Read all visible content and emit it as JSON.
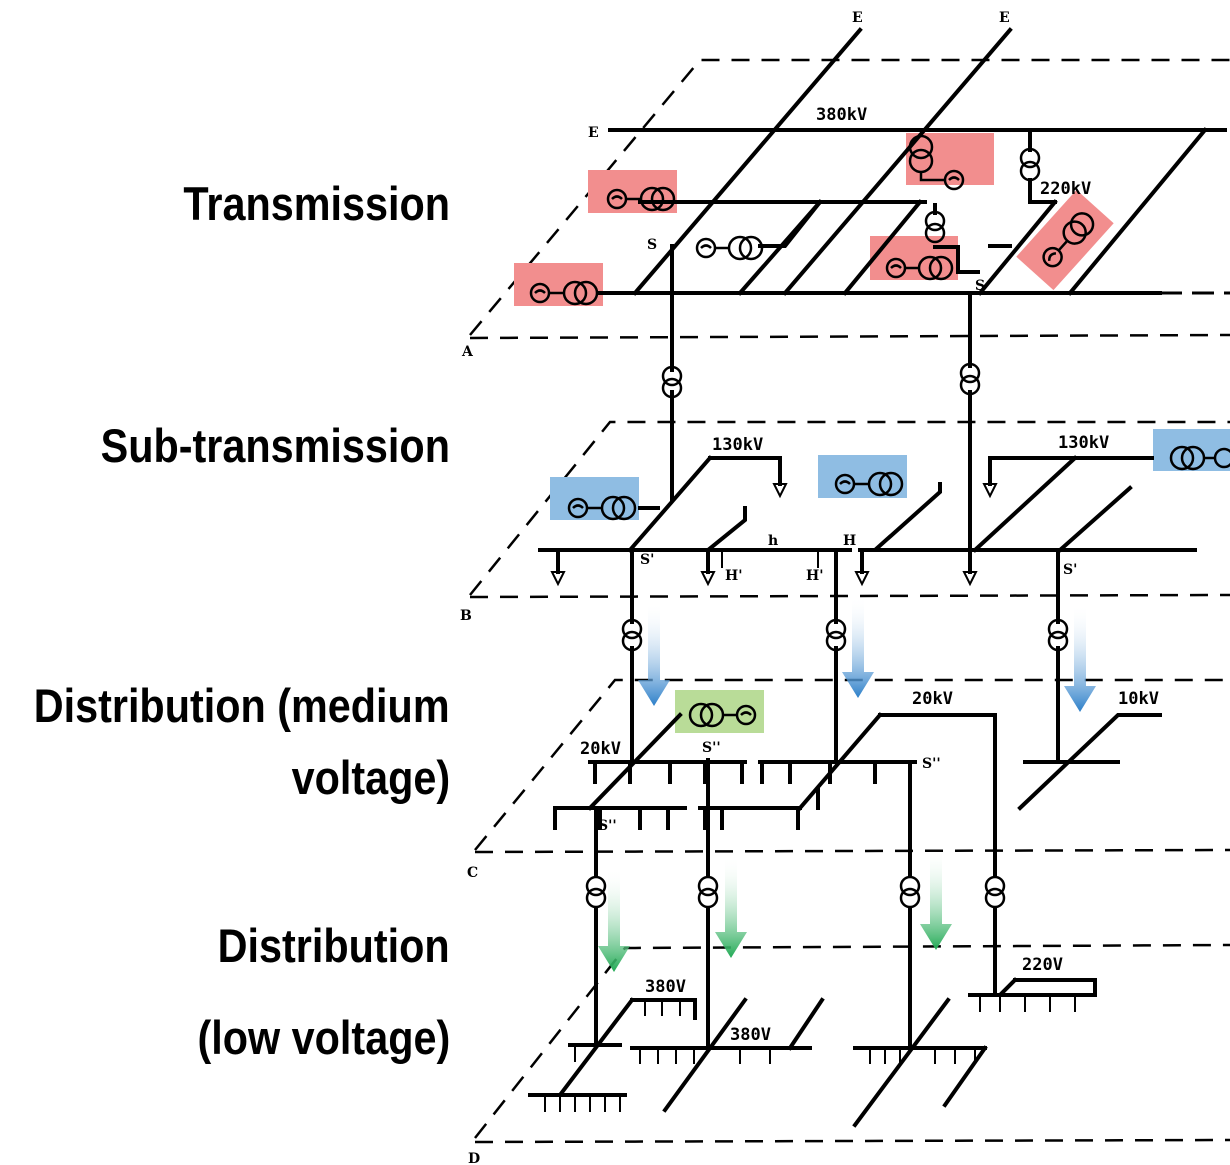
{
  "levels": {
    "transmission": "Transmission",
    "subtransmission": "Sub-transmission",
    "medium_line1": "Distribution (medium",
    "medium_line2": "voltage)",
    "low_line1": "Distribution",
    "low_line2": "(low voltage)"
  },
  "voltages": {
    "v380kV": "380kV",
    "v220kV": "220kV",
    "v130kV_left": "130kV",
    "v130kV_right": "130kV",
    "v20kV_left": "20kV",
    "v20kV_right": "20kV",
    "v10kV": "10kV",
    "v380V_a": "380V",
    "v380V_b": "380V",
    "v220V": "220V"
  },
  "plane_labels": {
    "a": "A",
    "b": "B",
    "c": "C",
    "d": "D",
    "e1": "E",
    "e2": "E",
    "e3": "E"
  },
  "node_labels": {
    "s1": "S",
    "s2": "S",
    "sp1": "S'",
    "sp2": "S'",
    "spp1": "S''",
    "spp2": "S''",
    "spp3": "S''",
    "h": "h",
    "H": "H",
    "hp1": "H'",
    "hp2": "H'"
  },
  "colors": {
    "transmission_highlight": "#f28e8e",
    "subtransmission_highlight": "#8fbde3",
    "medium_highlight": "#b9dc98",
    "arrow_blue": "#2c7fc9",
    "arrow_green": "#22aa55"
  }
}
